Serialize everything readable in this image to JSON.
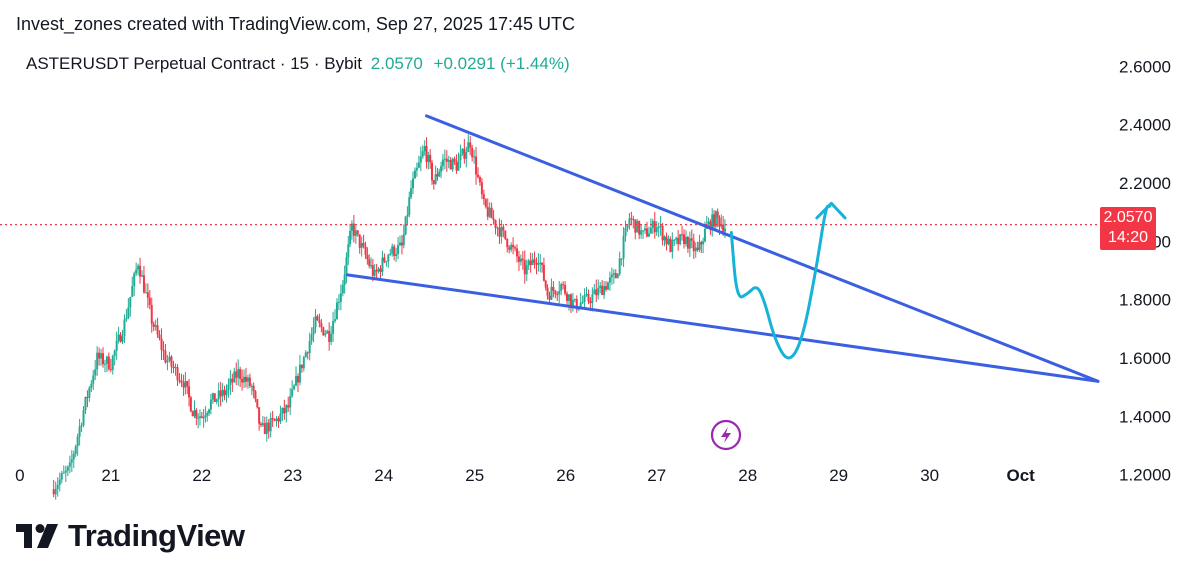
{
  "header": {
    "credit": "Invest_zones created with TradingView.com, Sep 27, 2025 17:45 UTC"
  },
  "legend": {
    "symbol": "ASTERUSDT Perpetual Contract · 15 · Bybit",
    "price": "2.0570",
    "change": "+0.0291 (+1.44%)"
  },
  "price_tag": {
    "price": "2.0570",
    "countdown": "14:20"
  },
  "brand": {
    "name": "TradingView"
  },
  "colors": {
    "up": "#22ab94",
    "down": "#f23645",
    "trendline": "#3a5fe0",
    "projection": "#16b3d6",
    "current_price_line": "#f23645",
    "event_icon": "#9c27b0"
  },
  "icons": {
    "event": "lightning-icon",
    "logo": "tradingview-logo-icon"
  },
  "chart_data": {
    "type": "candlestick",
    "symbol": "ASTERUSDT",
    "timeframe": "15",
    "exchange": "Bybit",
    "last_price": 2.057,
    "current_price_line": 2.057,
    "y_ticks": [
      "2.6000",
      "2.4000",
      "2.2000",
      "2.0000",
      "1.8000",
      "1.6000",
      "1.4000",
      "1.2000"
    ],
    "y_tick_values": [
      2.6,
      2.4,
      2.2,
      2.0,
      1.8,
      1.6,
      1.4,
      1.2
    ],
    "x_ticks": [
      "0",
      "21",
      "22",
      "23",
      "24",
      "25",
      "26",
      "27",
      "28",
      "29",
      "30",
      "Oct"
    ],
    "x_tick_values": [
      20,
      21,
      22,
      23,
      24,
      25,
      26,
      27,
      28,
      29,
      30,
      31
    ],
    "x_range": [
      19.98,
      31.85
    ],
    "y_range": [
      1.12,
      2.69
    ],
    "price_path": [
      [
        20.35,
        1.15
      ],
      [
        20.55,
        1.22
      ],
      [
        20.7,
        1.42
      ],
      [
        20.85,
        1.6
      ],
      [
        21.0,
        1.58
      ],
      [
        21.15,
        1.72
      ],
      [
        21.3,
        1.93
      ],
      [
        21.45,
        1.73
      ],
      [
        21.6,
        1.6
      ],
      [
        21.8,
        1.52
      ],
      [
        21.9,
        1.42
      ],
      [
        22.0,
        1.4
      ],
      [
        22.1,
        1.45
      ],
      [
        22.25,
        1.48
      ],
      [
        22.4,
        1.55
      ],
      [
        22.55,
        1.5
      ],
      [
        22.65,
        1.35
      ],
      [
        22.8,
        1.38
      ],
      [
        22.95,
        1.43
      ],
      [
        23.1,
        1.58
      ],
      [
        23.25,
        1.72
      ],
      [
        23.4,
        1.68
      ],
      [
        23.55,
        1.86
      ],
      [
        23.65,
        2.05
      ],
      [
        23.8,
        1.95
      ],
      [
        23.9,
        1.88
      ],
      [
        24.05,
        1.96
      ],
      [
        24.2,
        1.98
      ],
      [
        24.3,
        2.18
      ],
      [
        24.45,
        2.32
      ],
      [
        24.55,
        2.2
      ],
      [
        24.65,
        2.28
      ],
      [
        24.8,
        2.26
      ],
      [
        24.95,
        2.34
      ],
      [
        25.1,
        2.12
      ],
      [
        25.25,
        2.05
      ],
      [
        25.4,
        1.98
      ],
      [
        25.55,
        1.9
      ],
      [
        25.7,
        1.95
      ],
      [
        25.8,
        1.82
      ],
      [
        25.95,
        1.85
      ],
      [
        26.1,
        1.78
      ],
      [
        26.25,
        1.8
      ],
      [
        26.4,
        1.84
      ],
      [
        26.55,
        1.88
      ],
      [
        26.7,
        2.08
      ],
      [
        26.85,
        2.02
      ],
      [
        27.0,
        2.06
      ],
      [
        27.15,
        1.98
      ],
      [
        27.3,
        2.01
      ],
      [
        27.45,
        1.96
      ],
      [
        27.55,
        2.05
      ],
      [
        27.65,
        2.08
      ],
      [
        27.75,
        2.05
      ]
    ],
    "trendlines": [
      {
        "name": "upper-resistance",
        "points": [
          [
            24.47,
            2.43
          ],
          [
            31.85,
            1.52
          ]
        ]
      },
      {
        "name": "lower-support",
        "points": [
          [
            23.6,
            1.885
          ],
          [
            31.85,
            1.52
          ]
        ]
      }
    ],
    "projection_path": [
      [
        27.82,
        2.03
      ],
      [
        27.88,
        1.8
      ],
      [
        28.0,
        1.82
      ],
      [
        28.1,
        1.85
      ],
      [
        28.18,
        1.8
      ],
      [
        28.3,
        1.66
      ],
      [
        28.45,
        1.58
      ],
      [
        28.6,
        1.66
      ],
      [
        28.75,
        1.9
      ],
      [
        28.86,
        2.12
      ],
      [
        28.9,
        2.12
      ]
    ],
    "projection_arrow": {
      "tip": [
        28.92,
        2.13
      ],
      "left": [
        28.76,
        2.08
      ],
      "right": [
        29.07,
        2.08
      ]
    },
    "event_marker_x": 27.75
  }
}
